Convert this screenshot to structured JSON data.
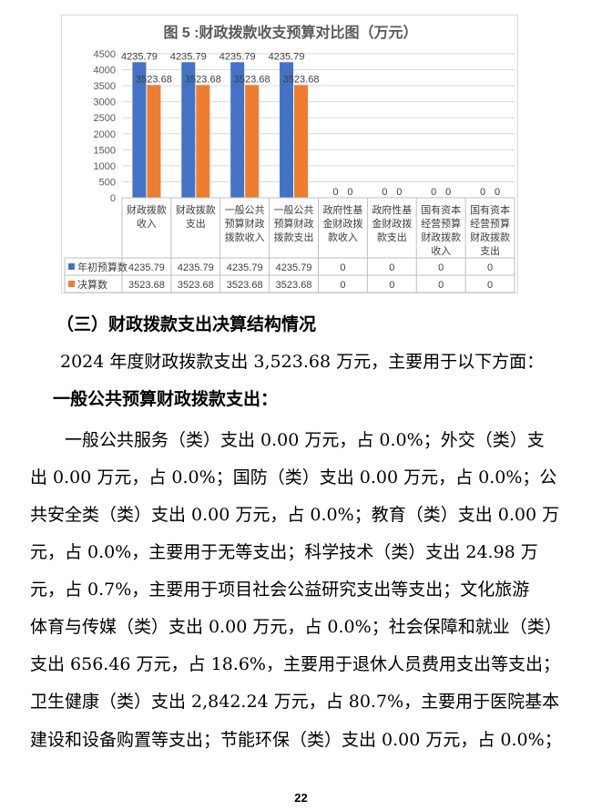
{
  "chart_data": {
    "type": "bar",
    "title": "图 5 :财政拨款收支预算对比图（万元）",
    "categories": [
      [
        "财政拨款",
        "收入"
      ],
      [
        "财政拨款",
        "支出"
      ],
      [
        "一般公共",
        "预算财政",
        "拨款收入"
      ],
      [
        "一般公共",
        "预算财政",
        "拨款支出"
      ],
      [
        "政府性基",
        "金财政拨",
        "款收入"
      ],
      [
        "政府性基",
        "金财政拨",
        "款支出"
      ],
      [
        "国有资本",
        "经营预算",
        "财政拨款",
        "收入"
      ],
      [
        "国有资本",
        "经营预算",
        "财政拨款",
        "支出"
      ]
    ],
    "series": [
      {
        "name": "年初预算数",
        "color": "#4472c4",
        "values": [
          4235.79,
          4235.79,
          4235.79,
          4235.79,
          0,
          0,
          0,
          0
        ],
        "labels": [
          "4235.79",
          "4235.79",
          "4235.79",
          "4235.79",
          "0",
          "0",
          "0",
          "0"
        ]
      },
      {
        "name": "决算数",
        "color": "#ed7d31",
        "values": [
          3523.68,
          3523.68,
          3523.68,
          3523.68,
          0,
          0,
          0,
          0
        ],
        "labels": [
          "3523.68",
          "3523.68",
          "3523.68",
          "3523.68",
          "0",
          "0",
          "0",
          "0"
        ]
      }
    ],
    "ylim": [
      0,
      4500
    ],
    "yticks": [
      0,
      500,
      1000,
      1500,
      2000,
      2500,
      3000,
      3500,
      4000,
      4500
    ],
    "grid": true,
    "legend": "data-table"
  },
  "section_heading": "（三）财政拨款支出决算结构情况",
  "intro": "2024 年度财政拨款支出 3,523.68 万元，主要用于以下方面：",
  "subheading": "一般公共预算财政拨款支出：",
  "body_lines": [
    "一般公共服务（类）支出 0.00 万元，占 0.0%；外交（类）支",
    "出 0.00 万元，占 0.0%；国防（类）支出 0.00 万元，占 0.0%；公",
    "共安全类（类）支出 0.00 万元，占 0.0%；教育（类）支出 0.00 万",
    "元，占 0.0%，主要用于无等支出；科学技术（类）支出 24.98 万",
    "元，占 0.7%，主要用于项目社会公益研究支出等支出；文化旅游",
    "体育与传媒（类）支出 0.00 万元，占 0.0%；社会保障和就业（类）",
    "支出 656.46 万元，占 18.6%，主要用于退休人员费用支出等支出；",
    "卫生健康（类）支出 2,842.24 万元，占 80.7%，主要用于医院基本",
    "建设和设备购置等支出；节能环保（类）支出 0.00 万元，占 0.0%；"
  ],
  "page_number": "22"
}
